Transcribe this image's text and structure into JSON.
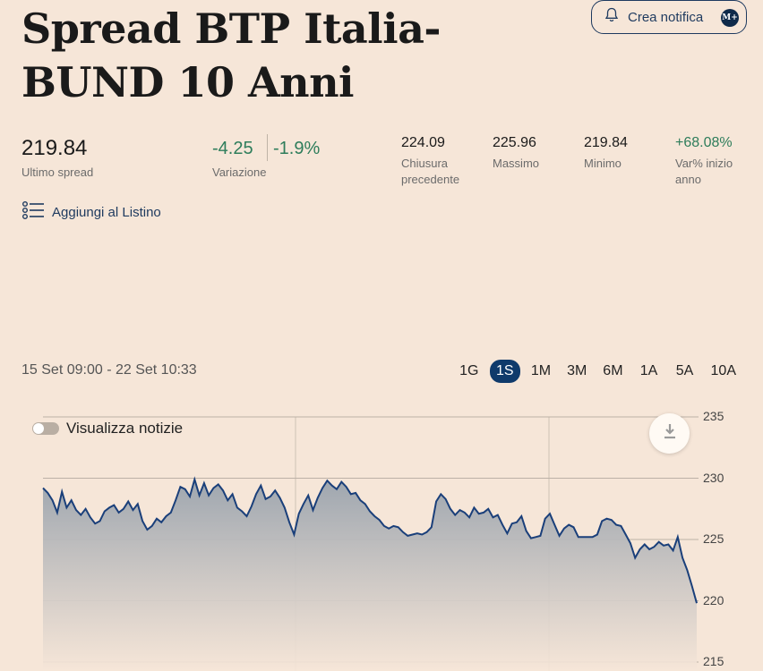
{
  "title": "Spread BTP Italia-BUND 10 Anni",
  "alert_button": {
    "label": "Crea notifica",
    "badge": "M+"
  },
  "stats": {
    "last": {
      "value": "219.84",
      "label": "Ultimo spread"
    },
    "change": {
      "abs": "-4.25",
      "pct": "-1.9%",
      "label": "Variazione"
    },
    "prev_close": {
      "value": "224.09",
      "label": "Chiusura precedente"
    },
    "high": {
      "value": "225.96",
      "label": "Massimo"
    },
    "low": {
      "value": "219.84",
      "label": "Minimo"
    },
    "ytd": {
      "value": "+68.08%",
      "label": "Var% inizio anno"
    }
  },
  "watchlist_link": "Aggiungi al Listino",
  "range_label": "15 Set 09:00 - 22 Set 10:33",
  "periods": [
    "1G",
    "1S",
    "1M",
    "3M",
    "6M",
    "1A",
    "5A",
    "10A"
  ],
  "active_period": "1S",
  "news_toggle": "Visualizza notizie",
  "colors": {
    "accent": "#0f3a6b",
    "positive": "#2e7d5b",
    "line": "#1a3f7a"
  },
  "chart_data": {
    "type": "area",
    "y_ticks": [
      "235",
      "230",
      "225",
      "220",
      "215"
    ],
    "ylim": [
      215,
      235
    ],
    "grid": true,
    "series": [
      {
        "values": [
          229.2,
          228.8,
          228.2,
          227.2,
          228.9,
          227.6,
          228.2,
          227.4,
          227.0,
          227.5,
          226.8,
          226.3,
          226.5,
          227.3,
          227.6,
          227.8,
          227.2,
          227.5,
          228.1,
          227.4,
          227.9,
          226.5,
          225.8,
          226.1,
          226.7,
          226.4,
          226.9,
          227.2,
          228.2,
          229.3,
          229.1,
          228.5,
          229.9,
          228.6,
          229.6,
          228.6,
          229.2,
          229.5,
          229.0,
          228.2,
          228.7,
          227.6,
          227.3,
          226.9,
          227.7,
          228.7,
          229.4,
          228.3,
          228.5,
          229.0,
          228.4,
          227.6,
          226.4,
          225.4,
          227.1,
          227.9,
          228.6,
          227.4,
          228.4,
          229.2,
          229.8,
          229.4,
          229.1,
          229.7,
          229.3,
          228.7,
          228.8,
          228.2,
          227.9,
          227.3,
          226.9,
          226.6,
          226.1,
          225.9,
          226.1,
          226.0,
          225.6,
          225.3,
          225.4,
          225.5,
          225.4,
          225.6,
          226.0,
          228.1,
          228.7,
          228.3,
          227.5,
          227.0,
          227.4,
          227.2,
          226.8,
          227.6,
          227.1,
          227.2,
          227.5,
          226.8,
          227.0,
          226.2,
          225.5,
          226.3,
          226.4,
          226.9,
          225.7,
          225.1,
          225.2,
          225.3,
          226.7,
          227.1,
          226.2,
          225.3,
          225.9,
          226.2,
          226.0,
          225.2,
          225.2,
          225.2,
          225.2,
          225.4,
          226.5,
          226.7,
          226.6,
          226.2,
          226.1,
          225.4,
          224.7,
          223.5,
          224.2,
          224.6,
          224.2,
          224.4,
          224.8,
          224.5,
          224.6,
          224.1,
          225.2,
          223.5,
          222.5,
          221.2,
          219.8
        ]
      }
    ]
  }
}
